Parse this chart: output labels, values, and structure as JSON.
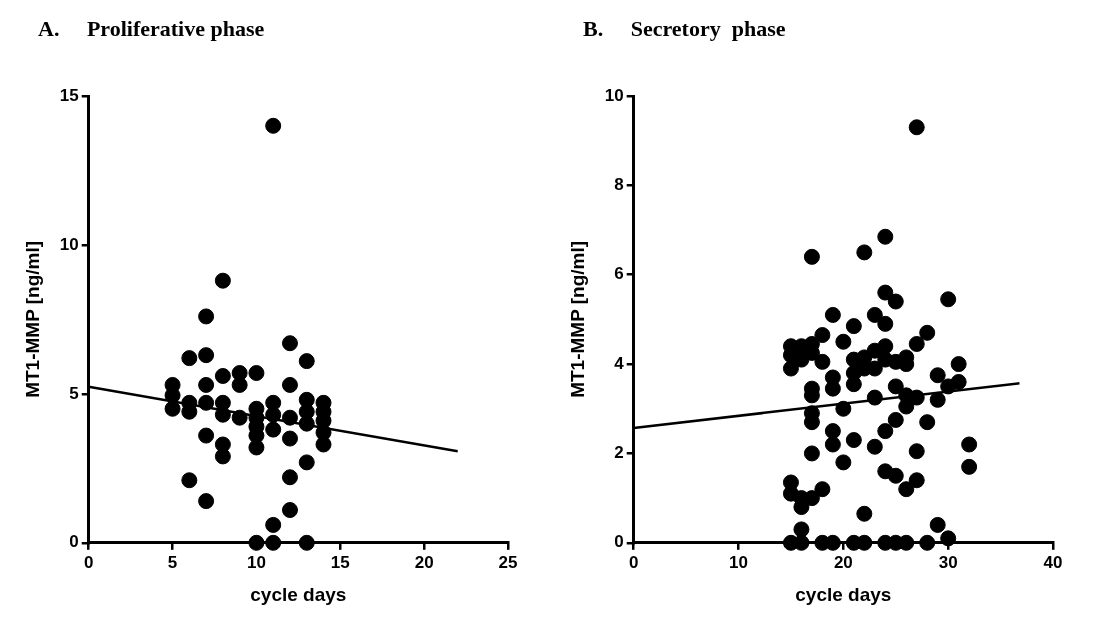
{
  "chart_data": [
    {
      "type": "scatter",
      "title": "A.     Proliferative phase",
      "xlabel": "cycle days",
      "ylabel": "MT1-MMP [ng/ml]",
      "xlim": [
        0,
        25
      ],
      "xticks": [
        0,
        5,
        10,
        15,
        20,
        25
      ],
      "ylim": [
        0,
        15
      ],
      "yticks": [
        0,
        5,
        10,
        15
      ],
      "grid": false,
      "legend": false,
      "marker": "circle",
      "series": [
        {
          "color": "#000000",
          "x": [
            5,
            5,
            5,
            6,
            6,
            6,
            6,
            7,
            7,
            7,
            7,
            7,
            7,
            8,
            8,
            8,
            8,
            8,
            8,
            9,
            9,
            9,
            10,
            10,
            10,
            10,
            10,
            10,
            10,
            11,
            11,
            11,
            11,
            11,
            11,
            12,
            12,
            12,
            12,
            12,
            12,
            13,
            13,
            13,
            13,
            13,
            13,
            14,
            14,
            14,
            14,
            14
          ],
          "values": [
            5.3,
            4.95,
            4.5,
            6.2,
            4.7,
            4.4,
            2.1,
            7.6,
            6.3,
            5.3,
            4.7,
            3.6,
            1.4,
            8.8,
            5.6,
            4.7,
            4.3,
            3.3,
            2.9,
            5.7,
            5.3,
            4.2,
            5.7,
            4.5,
            4.2,
            3.9,
            3.6,
            3.2,
            0,
            14.0,
            4.7,
            4.3,
            3.8,
            0.6,
            0,
            6.7,
            5.3,
            4.2,
            3.5,
            2.2,
            1.1,
            6.1,
            4.8,
            4.4,
            4.0,
            2.7,
            0,
            4.7,
            4.4,
            4.1,
            3.7,
            3.3
          ]
        },
        {
          "type": "line",
          "color": "#000000",
          "x": [
            0,
            22
          ],
          "values": [
            5.24,
            3.07
          ],
          "marker": "none"
        }
      ]
    },
    {
      "type": "scatter",
      "title": "B.     Secretory  phase",
      "xlabel": "cycle days",
      "ylabel": "MT1-MMP [ng/ml]",
      "xlim": [
        0,
        40
      ],
      "xticks": [
        0,
        10,
        20,
        30,
        40
      ],
      "ylim": [
        0,
        10
      ],
      "yticks": [
        0,
        2,
        4,
        6,
        8,
        10
      ],
      "grid": false,
      "legend": false,
      "marker": "circle",
      "series": [
        {
          "color": "#000000",
          "x": [
            15,
            15,
            15,
            15,
            15,
            15,
            16,
            16,
            16,
            16,
            16,
            16,
            17,
            17,
            17,
            17,
            17,
            17,
            17,
            17,
            17,
            18,
            18,
            18,
            18,
            19,
            19,
            19,
            19,
            19,
            19,
            20,
            20,
            20,
            21,
            21,
            21,
            21,
            21,
            21,
            22,
            22,
            22,
            22,
            22,
            23,
            23,
            23,
            23,
            23,
            24,
            24,
            24,
            24,
            24,
            24,
            24,
            24,
            25,
            25,
            25,
            25,
            25,
            25,
            26,
            26,
            26,
            26,
            26,
            26,
            27,
            27,
            27,
            27,
            27,
            28,
            28,
            28,
            29,
            29,
            29,
            30,
            30,
            30,
            31,
            31,
            32,
            32
          ],
          "values": [
            4.4,
            4.2,
            3.9,
            1.35,
            1.1,
            0,
            4.4,
            4.1,
            1.0,
            0.8,
            0.3,
            0,
            6.4,
            4.45,
            4.25,
            3.45,
            3.3,
            2.9,
            2.7,
            2.0,
            1.0,
            4.65,
            4.05,
            1.2,
            0,
            5.1,
            3.7,
            3.45,
            2.5,
            2.2,
            0,
            4.5,
            3.0,
            1.8,
            4.85,
            4.1,
            3.8,
            3.55,
            2.3,
            0,
            6.5,
            4.15,
            3.9,
            0.65,
            0,
            5.1,
            4.3,
            3.9,
            3.25,
            2.15,
            6.85,
            5.6,
            4.9,
            4.4,
            4.1,
            2.5,
            1.6,
            0,
            5.4,
            4.05,
            3.5,
            2.75,
            1.5,
            0,
            4.15,
            4.0,
            3.3,
            3.05,
            1.2,
            0,
            9.3,
            4.45,
            3.25,
            2.05,
            1.4,
            4.7,
            2.7,
            0,
            3.75,
            3.2,
            0.4,
            5.45,
            3.5,
            0.1,
            4.0,
            3.6,
            2.2,
            1.7
          ]
        },
        {
          "type": "line",
          "color": "#000000",
          "x": [
            0,
            36.8
          ],
          "values": [
            2.57,
            3.57
          ],
          "marker": "none"
        }
      ]
    }
  ]
}
